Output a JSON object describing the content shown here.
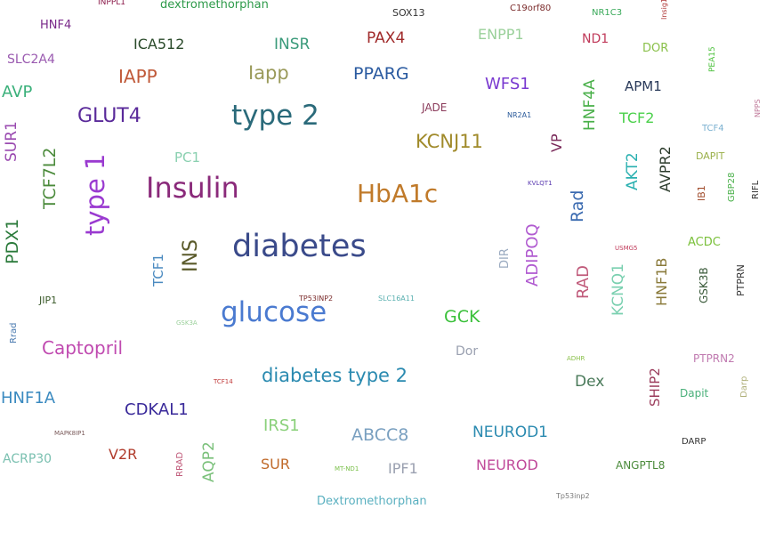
{
  "words": [
    {
      "text": "INPPL1",
      "color": "#8b1a4a"
    },
    {
      "text": "dextromethorphan",
      "color": "#2e9a4a"
    },
    {
      "text": "SOX13",
      "color": "#333333"
    },
    {
      "text": "C19orf80",
      "color": "#7a2a2a"
    },
    {
      "text": "NR1C3",
      "color": "#3aaa5a"
    },
    {
      "text": "Insig1",
      "color": "#b03a3a"
    },
    {
      "text": "HNF4",
      "color": "#7a2a8a"
    },
    {
      "text": "ICA512",
      "color": "#2a4a2a"
    },
    {
      "text": "INSR",
      "color": "#3a9a7a"
    },
    {
      "text": "PAX4",
      "color": "#a02a2a"
    },
    {
      "text": "ENPP1",
      "color": "#9ad09a"
    },
    {
      "text": "ND1",
      "color": "#c03a5a"
    },
    {
      "text": "DOR",
      "color": "#8ac04a"
    },
    {
      "text": "PEA15",
      "color": "#4ac03a"
    },
    {
      "text": "SLC2A4",
      "color": "#9a5ab0"
    },
    {
      "text": "IAPP",
      "color": "#c05a3a"
    },
    {
      "text": "Iapp",
      "color": "#9a9a5a"
    },
    {
      "text": "PPARG",
      "color": "#2a5aa0"
    },
    {
      "text": "AVP",
      "color": "#3ab07a"
    },
    {
      "text": "WFS1",
      "color": "#7a3ad0"
    },
    {
      "text": "HNF4A",
      "color": "#4ab04a"
    },
    {
      "text": "APM1",
      "color": "#2a3a5a"
    },
    {
      "text": "NPPS",
      "color": "#c07a9a"
    },
    {
      "text": "JADE",
      "color": "#8a3a5a"
    },
    {
      "text": "GLUT4",
      "color": "#5a2a9a"
    },
    {
      "text": "type 2",
      "color": "#2a6a7a"
    },
    {
      "text": "NR2A1",
      "color": "#2a5a9a"
    },
    {
      "text": "TCF2",
      "color": "#4ad04a"
    },
    {
      "text": "TCF4",
      "color": "#7ab0d0"
    },
    {
      "text": "SUR1",
      "color": "#9a4ab0"
    },
    {
      "text": "KCNJ11",
      "color": "#a08a2a"
    },
    {
      "text": "VP",
      "color": "#7a2a5a"
    },
    {
      "text": "TCF7L2",
      "color": "#4a8a3a"
    },
    {
      "text": "PC1",
      "color": "#8ad0b0"
    },
    {
      "text": "DAPIT",
      "color": "#9ab04a"
    },
    {
      "text": "AKT2",
      "color": "#2ab0b0"
    },
    {
      "text": "AVPR2",
      "color": "#2a3a2a"
    },
    {
      "text": "type 1",
      "color": "#9a3ad0"
    },
    {
      "text": "Insulin",
      "color": "#8a2a7a"
    },
    {
      "text": "HbA1c",
      "color": "#c07a2a"
    },
    {
      "text": "KVLQT1",
      "color": "#5a3ab0"
    },
    {
      "text": "IB1",
      "color": "#a04a2a"
    },
    {
      "text": "GBP28",
      "color": "#4ab04a"
    },
    {
      "text": "RIFL",
      "color": "#333333"
    },
    {
      "text": "Rad",
      "color": "#3a6ab0"
    },
    {
      "text": "PDX1",
      "color": "#2a7a3a"
    },
    {
      "text": "diabetes",
      "color": "#3a4a8a"
    },
    {
      "text": "ADIPOQ",
      "color": "#b05ad0"
    },
    {
      "text": "USMG5",
      "color": "#c03a5a"
    },
    {
      "text": "ACDC",
      "color": "#7ac03a"
    },
    {
      "text": "INS",
      "color": "#5a5a2a"
    },
    {
      "text": "DIR",
      "color": "#9aaac0"
    },
    {
      "text": "TCF1",
      "color": "#4a8ac0"
    },
    {
      "text": "RAD",
      "color": "#c05a7a"
    },
    {
      "text": "KCNQ1",
      "color": "#7ad0b0"
    },
    {
      "text": "HNF1B",
      "color": "#8a7a3a"
    },
    {
      "text": "GSK3B",
      "color": "#3a5a3a"
    },
    {
      "text": "PTPRN",
      "color": "#333333"
    },
    {
      "text": "JIP1",
      "color": "#3a5a2a"
    },
    {
      "text": "TP53INP2",
      "color": "#7a2a2a"
    },
    {
      "text": "SLC16A11",
      "color": "#5ab0b0"
    },
    {
      "text": "glucose",
      "color": "#4a7ad0"
    },
    {
      "text": "GCK",
      "color": "#3ac03a"
    },
    {
      "text": "Rrad",
      "color": "#4a7ab0"
    },
    {
      "text": "GSK3A",
      "color": "#9ad09a"
    },
    {
      "text": "Captopril",
      "color": "#c04ab0"
    },
    {
      "text": "Dor",
      "color": "#9aa0b0"
    },
    {
      "text": "ADHR",
      "color": "#8ac04a"
    },
    {
      "text": "PTPRN2",
      "color": "#c07ab0"
    },
    {
      "text": "TCF14",
      "color": "#c03a3a"
    },
    {
      "text": "diabetes type 2",
      "color": "#2a8ab0"
    },
    {
      "text": "Dex",
      "color": "#4a7a5a"
    },
    {
      "text": "SHIP2",
      "color": "#9a3a5a"
    },
    {
      "text": "Dapit",
      "color": "#4ab07a"
    },
    {
      "text": "Darp",
      "color": "#b0b07a"
    },
    {
      "text": "HNF1A",
      "color": "#3a8ac0"
    },
    {
      "text": "CDKAL1",
      "color": "#3a2a9a"
    },
    {
      "text": "IRS1",
      "color": "#8ad07a"
    },
    {
      "text": "ABCC8",
      "color": "#7aa0c0"
    },
    {
      "text": "NEUROD1",
      "color": "#2a8ab0"
    },
    {
      "text": "MAPK8IP1",
      "color": "#7a5a5a"
    },
    {
      "text": "DARP",
      "color": "#333333"
    },
    {
      "text": "ACRP30",
      "color": "#7ac0b0"
    },
    {
      "text": "V2R",
      "color": "#b03a2a"
    },
    {
      "text": "RRAD",
      "color": "#c05a7a"
    },
    {
      "text": "AQP2",
      "color": "#7ac07a"
    },
    {
      "text": "SUR",
      "color": "#c06a2a"
    },
    {
      "text": "MT-ND1",
      "color": "#7ac04a"
    },
    {
      "text": "IPF1",
      "color": "#9aa0b0"
    },
    {
      "text": "NEUROD",
      "color": "#c04a9a"
    },
    {
      "text": "ANGPTL8",
      "color": "#4a8a3a"
    },
    {
      "text": "Tp53inp2",
      "color": "#7a7a7a"
    },
    {
      "text": "Dextromethorphan",
      "color": "#5ab0c0"
    }
  ]
}
